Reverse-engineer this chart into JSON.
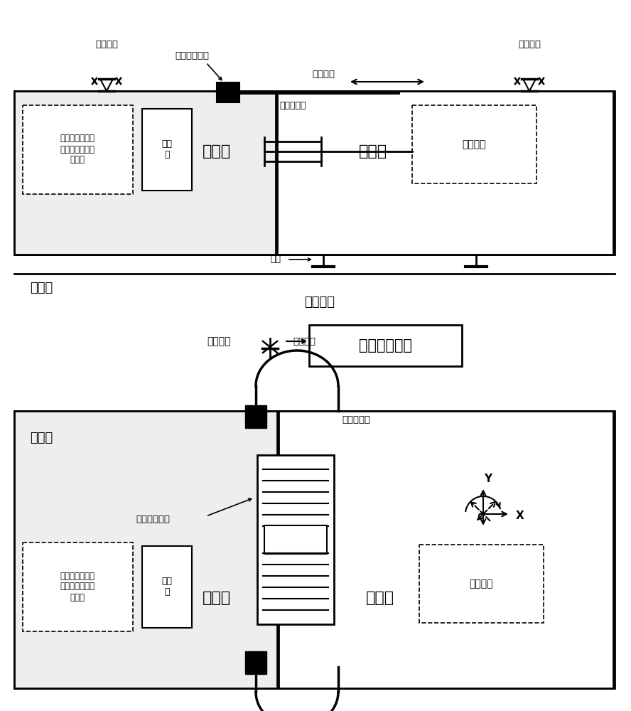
{
  "bg_color": "#ffffff",
  "line_color": "#000000",
  "side_view_label": "侧视图",
  "top_view_label": "俯视图",
  "air_platform_label": "气浮平台",
  "fixed_cabin_label": "固定舱",
  "motion_cabin_label": "运动舱",
  "computer_label": "计算\n机",
  "mag_actuator_label": "磁浮作动器",
  "six_force_sensor_label": "六维力传感器",
  "inter_cabin_cable_label": "舱间电缆",
  "wireless_module_label": "无线模块",
  "fiber_gyro_label": "光纤陀螺",
  "mag_driver_label": "磁浮电流驱动器\n位移传感器采集\n蓄电池",
  "air_foot_label": "气足",
  "dynamics_camera_label": "动力学目标机",
  "x_label": "X",
  "y_label": "Y"
}
